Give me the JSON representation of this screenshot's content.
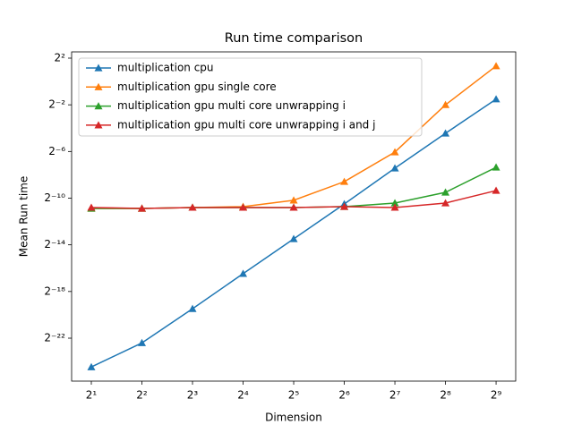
{
  "chart_data": {
    "type": "line",
    "title": "Run time comparison",
    "x_label": "Dimension",
    "y_label": "Mean Run time",
    "x": [
      2,
      4,
      8,
      16,
      32,
      64,
      128,
      256,
      512
    ],
    "series": [
      {
        "name": "multiplication cpu",
        "color": "#1f77b4",
        "values": [
          4.3e-08,
          1.8e-07,
          1.37e-06,
          1.1e-05,
          8.7e-05,
          0.00069,
          0.0058,
          0.046,
          0.35
        ]
      },
      {
        "name": "multiplication gpu single core",
        "color": "#ff7f0e",
        "values": [
          0.00053,
          0.00053,
          0.00056,
          0.00059,
          0.00086,
          0.0026,
          0.0151,
          0.25,
          2.5
        ]
      },
      {
        "name": "multiplication gpu multi core unwrapping i",
        "color": "#2ca02c",
        "values": [
          0.00053,
          0.00053,
          0.00056,
          0.00056,
          0.00056,
          0.00059,
          0.00073,
          0.00138,
          0.0061
        ]
      },
      {
        "name": "multiplication gpu multi core unwrapping i and j",
        "color": "#d62728",
        "values": [
          0.00056,
          0.00053,
          0.00056,
          0.00056,
          0.00056,
          0.00059,
          0.00056,
          0.00073,
          0.00153
        ]
      }
    ],
    "x_scale": "log2",
    "y_scale": "log2",
    "xlim": [
      1.527,
      670
    ],
    "ylim": [
      1.86e-08,
      5.8
    ],
    "xticks": [
      {
        "value": 2,
        "label": "2¹"
      },
      {
        "value": 4,
        "label": "2²"
      },
      {
        "value": 8,
        "label": "2³"
      },
      {
        "value": 16,
        "label": "2⁴"
      },
      {
        "value": 32,
        "label": "2⁵"
      },
      {
        "value": 64,
        "label": "2⁶"
      },
      {
        "value": 128,
        "label": "2⁷"
      },
      {
        "value": 256,
        "label": "2⁸"
      },
      {
        "value": 512,
        "label": "2⁹"
      }
    ],
    "yticks": [
      {
        "value": 4,
        "label": "2²"
      },
      {
        "value": 0.25,
        "label": "2⁻²"
      },
      {
        "value": 0.015625,
        "label": "2⁻⁶"
      },
      {
        "value": 0.0009765625,
        "label": "2⁻¹⁰"
      },
      {
        "value": 6.103515625e-05,
        "label": "2⁻¹⁴"
      },
      {
        "value": 3.814697265625e-06,
        "label": "2⁻¹⁸"
      },
      {
        "value": 2.384185791015625e-07,
        "label": "2⁻²²"
      }
    ],
    "legend": "upper left",
    "marker": "triangle"
  }
}
